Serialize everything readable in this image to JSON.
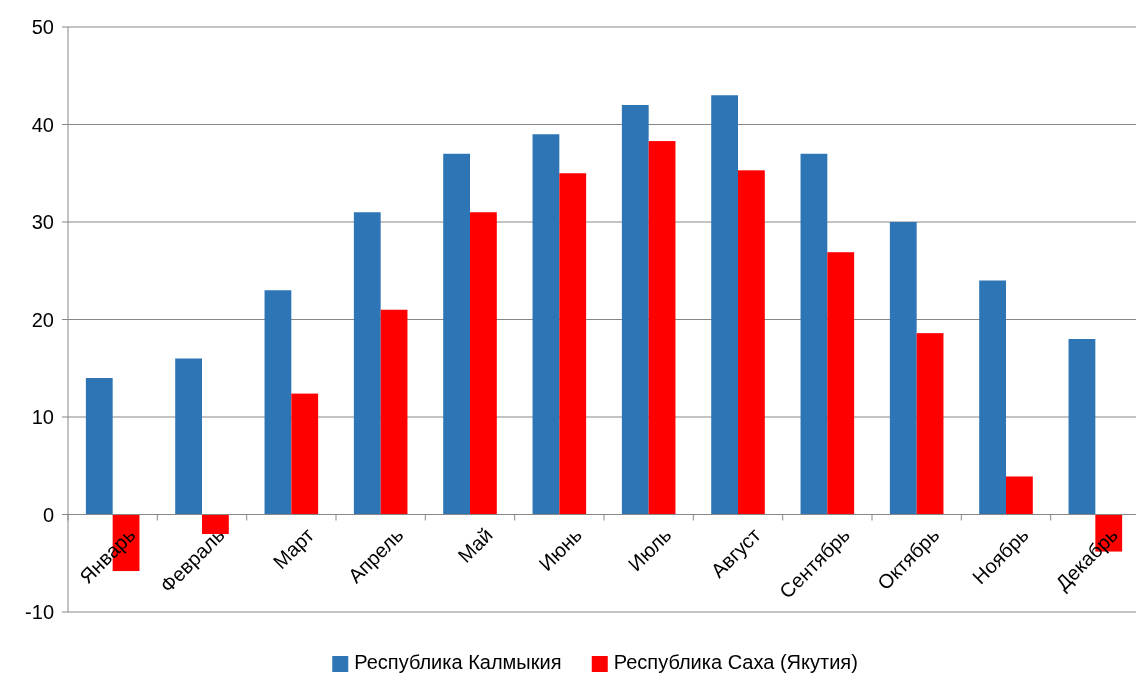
{
  "chart_data": {
    "type": "bar",
    "categories": [
      "Январь",
      "Февраль",
      "Март",
      "Апрель",
      "Май",
      "Июнь",
      "Июль",
      "Август",
      "Сентябрь",
      "Октябрь",
      "Ноябрь",
      "Декабрь"
    ],
    "series": [
      {
        "name": "Республика Калмыкия",
        "color": "#2e75b6",
        "values": [
          14,
          16,
          23,
          31,
          37,
          39,
          42,
          43,
          37,
          30,
          24,
          18
        ]
      },
      {
        "name": "Республика Саха (Якутия)",
        "color": "#ff0000",
        "values": [
          -5.8,
          -2,
          12.4,
          21,
          31,
          35,
          38.3,
          35.3,
          26.9,
          18.6,
          3.9,
          -3.8
        ]
      }
    ],
    "ylim": [
      -10,
      50
    ],
    "yticks": [
      -10,
      0,
      10,
      20,
      30,
      40,
      50
    ],
    "grid": "y",
    "legend": "bottom"
  }
}
